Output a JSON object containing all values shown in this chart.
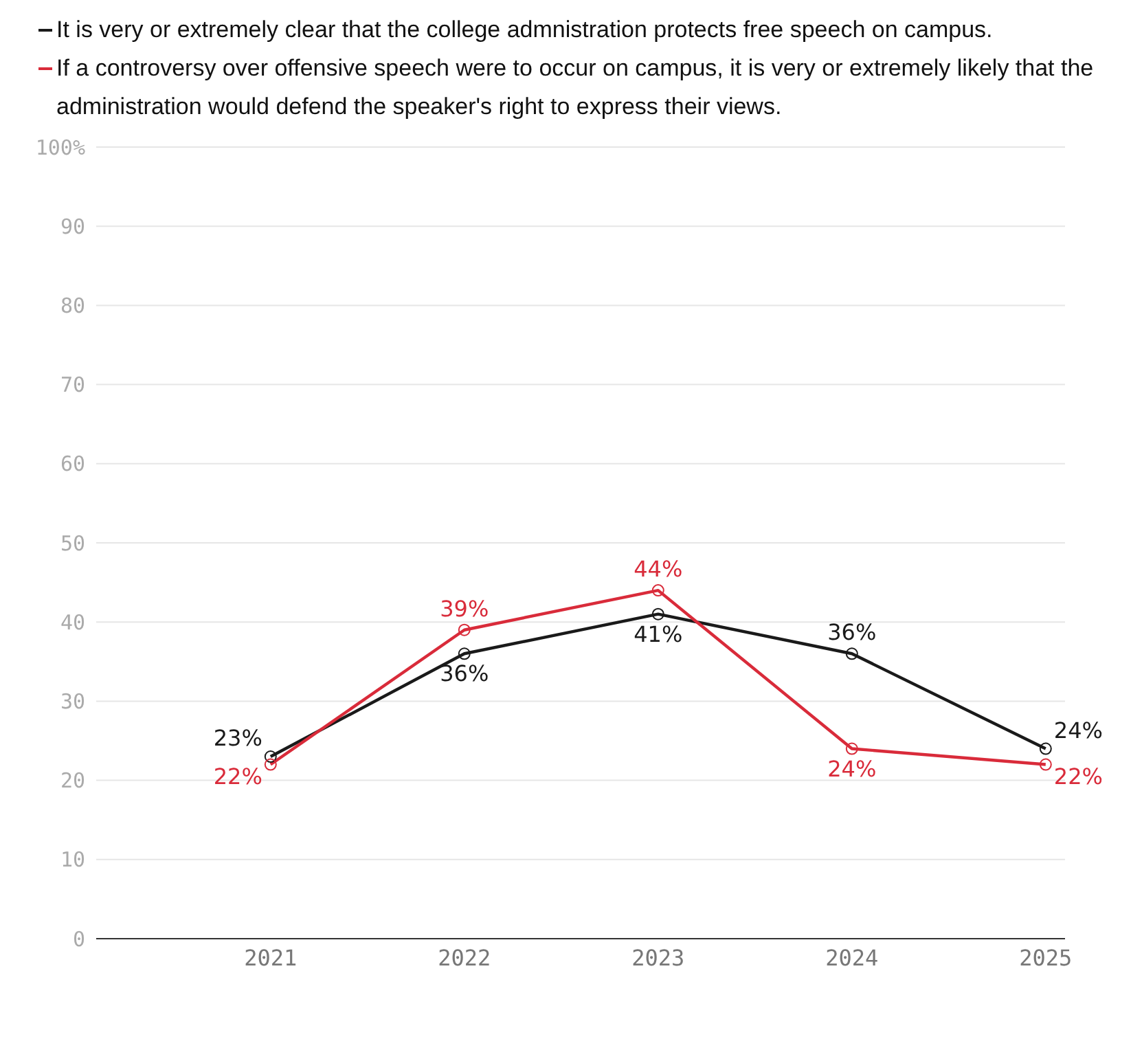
{
  "chart_data": {
    "type": "line",
    "categories": [
      "2021",
      "2022",
      "2023",
      "2024",
      "2025"
    ],
    "series": [
      {
        "name": "It is very or extremely clear that the college admnistration protects free speech on campus.",
        "color": "#1a1a1a",
        "values": [
          23,
          36,
          41,
          36,
          24
        ],
        "value_labels": [
          "23%",
          "36%",
          "41%",
          "36%",
          "24%"
        ]
      },
      {
        "name": "If a controversy over offensive speech were to occur on campus, it is very or extremely likely that the administration would defend the speaker's right to express their views.",
        "color": "#d92b3a",
        "values": [
          22,
          39,
          44,
          24,
          22
        ],
        "value_labels": [
          "22%",
          "39%",
          "44%",
          "24%",
          "22%"
        ]
      }
    ],
    "ylim": [
      0,
      100
    ],
    "yticks": [
      0,
      10,
      20,
      30,
      40,
      50,
      60,
      70,
      80,
      90,
      {
        "value": 100,
        "label": "100%"
      }
    ],
    "grid": "y",
    "legend": "top",
    "marker": "circle",
    "line_style": "solid"
  }
}
